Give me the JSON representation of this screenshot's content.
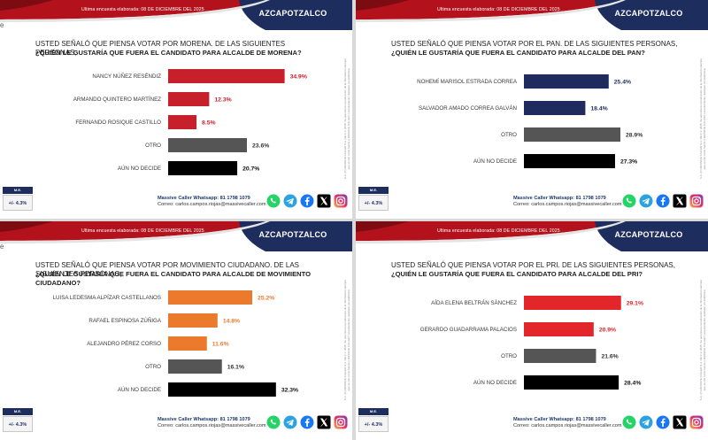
{
  "common": {
    "survey_date": "Ultima encuesta elaborada: 08 DE DICIEMBRE DEL 2025",
    "place": "AZCAPOTZALCO",
    "edge_letter": "e",
    "margin_error_label": "M.E.",
    "margin_error": "+/- 4.3%",
    "whatsapp": "Massive Caller Whatsapp: 81 1798 1079",
    "email": "Correo: carlos.campos.riojas@massivecaller.com",
    "side_note": "S.A. (C) MASSIVE CALLER S.A. DE C.V. 2025. Se autoriza la reproducción de la información siempre que se cite como fuente a MASSIVE CALLER. Levantamiento realizado vía telefónica.",
    "social_icons": [
      "whatsapp-icon",
      "telegram-icon",
      "facebook-icon",
      "x-icon",
      "instagram-icon"
    ]
  },
  "panels": [
    {
      "question_line1": "USTED SEÑALÓ QUE PIENSA VOTAR POR MORENA. DE LAS SIGUIENTES PERSONAS,",
      "question_line2": "¿QUIÉN LE GUSTARÍA QUE FUERA EL CANDIDATO PARA ALCALDE DE MORENA?"
    },
    {
      "question_line1": "USTED SEÑALÓ QUE PIENSA VOTAR POR EL PAN. DE LAS SIGUIENTES PERSONAS,",
      "question_line2": "¿QUIÉN LE GUSTARÍA QUE FUERA EL CANDIDATO PARA ALCALDE DEL PAN?"
    },
    {
      "question_line1": "USTED SEÑALÓ QUE PIENSA VOTAR POR MOVIMIENTO CIUDADANO. DE LAS SIGUIENTES PERSONAS,",
      "question_line2": "¿QUIÉN LE GUSTARÍA QUE FUERA EL CANDIDATO PARA ALCALDE DE MOVIMIENTO CIUDADANO?"
    },
    {
      "question_line1": "USTED SEÑALÓ QUE PIENSA VOTAR POR EL PRI. DE LAS SIGUIENTES PERSONAS,",
      "question_line2": "¿QUIÉN LE GUSTARÍA QUE FUERA EL CANDIDATO PARA ALCALDE DEL PRI?"
    }
  ],
  "chart_data": [
    {
      "type": "bar",
      "orientation": "horizontal",
      "title": "¿QUIÉN LE GUSTARÍA QUE FUERA EL CANDIDATO PARA ALCALDE DE MORENA?",
      "categories": [
        "NANCY NÚÑEZ RESÉNDIZ",
        "ARMANDO QUINTERO MARTÍNEZ",
        "FERNANDO ROSIQUE CASTILLO",
        "OTRO",
        "AÚN NO DECIDE"
      ],
      "values": [
        34.9,
        12.3,
        8.5,
        23.6,
        20.7
      ],
      "value_labels": [
        "34.9%",
        "12.3%",
        "8.5%",
        "23.6%",
        "20.7%"
      ],
      "colors": [
        "#c8202a",
        "#c8202a",
        "#c8202a",
        "#555555",
        "#000000"
      ],
      "label_colors": [
        "#c8202a",
        "#c8202a",
        "#c8202a",
        "#333333",
        "#111111"
      ],
      "xlim": [
        0,
        35
      ]
    },
    {
      "type": "bar",
      "orientation": "horizontal",
      "title": "¿QUIÉN LE GUSTARÍA QUE FUERA EL CANDIDATO PARA ALCALDE DEL PAN?",
      "categories": [
        "NOHEMÍ MARISOL ESTRADA CORREA",
        "SALVADOR AMADO CORREA GALVÁN",
        "OTRO",
        "AÚN NO DECIDE"
      ],
      "values": [
        25.4,
        18.4,
        28.9,
        27.3
      ],
      "value_labels": [
        "25.4%",
        "18.4%",
        "28.9%",
        "27.3%"
      ],
      "colors": [
        "#1f2a5e",
        "#1f2a5e",
        "#555555",
        "#000000"
      ],
      "label_colors": [
        "#1f2a5e",
        "#1f2a5e",
        "#333333",
        "#111111"
      ],
      "xlim": [
        0,
        35
      ]
    },
    {
      "type": "bar",
      "orientation": "horizontal",
      "title": "¿QUIÉN LE GUSTARÍA QUE FUERA EL CANDIDATO PARA ALCALDE DE MOVIMIENTO CIUDADANO?",
      "categories": [
        "LUISA LEDESMA ALPÍZAR CASTELLANOS",
        "RAFAEL ESPINOSA ZÚÑIGA",
        "ALEJANDRO PÉREZ CORSO",
        "OTRO",
        "AÚN NO DECIDE"
      ],
      "values": [
        25.2,
        14.8,
        11.6,
        16.1,
        32.3
      ],
      "value_labels": [
        "25.2%",
        "14.8%",
        "11.6%",
        "16.1%",
        "32.3%"
      ],
      "colors": [
        "#ec7a2c",
        "#ec7a2c",
        "#ec7a2c",
        "#555555",
        "#000000"
      ],
      "label_colors": [
        "#ec7a2c",
        "#ec7a2c",
        "#ec7a2c",
        "#333333",
        "#111111"
      ],
      "xlim": [
        0,
        35
      ]
    },
    {
      "type": "bar",
      "orientation": "horizontal",
      "title": "¿QUIÉN LE GUSTARÍA QUE FUERA EL CANDIDATO PARA ALCALDE DEL PRI?",
      "categories": [
        "AÍDA ELENA BELTRÁN SÁNCHEZ",
        "GERARDO GUADARRAMA PALACIOS",
        "OTRO",
        "AÚN NO DECIDE"
      ],
      "values": [
        29.1,
        20.9,
        21.6,
        28.4
      ],
      "value_labels": [
        "29.1%",
        "20.9%",
        "21.6%",
        "28.4%"
      ],
      "colors": [
        "#e3262a",
        "#e3262a",
        "#555555",
        "#000000"
      ],
      "label_colors": [
        "#e3262a",
        "#e3262a",
        "#333333",
        "#111111"
      ],
      "xlim": [
        0,
        35
      ]
    }
  ],
  "colors": {
    "header_red": "#b3121c",
    "header_navy": "#1d2d5e"
  }
}
